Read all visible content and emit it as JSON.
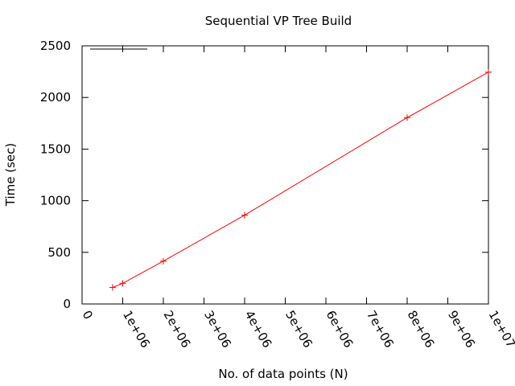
{
  "chart_data": {
    "type": "line",
    "title": "Sequential VP Tree Build",
    "xlabel": "No. of data points (N)",
    "ylabel": "Time (sec)",
    "xlim": [
      0,
      10000000
    ],
    "ylim": [
      0,
      2500
    ],
    "xticks": [
      0,
      1000000,
      2000000,
      3000000,
      4000000,
      5000000,
      6000000,
      7000000,
      8000000,
      9000000,
      10000000
    ],
    "xtick_labels": [
      "0",
      "1e+06",
      "2e+06",
      "3e+06",
      "4e+06",
      "5e+06",
      "6e+06",
      "7e+06",
      "8e+06",
      "9e+06",
      "1e+07"
    ],
    "yticks": [
      0,
      500,
      1000,
      1500,
      2000,
      2500
    ],
    "ytick_labels": [
      "0",
      "500",
      "1000",
      "1500",
      "2000",
      "2500"
    ],
    "grid": false,
    "legend": "top-left",
    "series": [
      {
        "name": "",
        "color": "#ff0000",
        "marker": "plus",
        "x": [
          750000,
          1000000,
          2000000,
          4000000,
          8000000,
          10000000
        ],
        "y": [
          160,
          200,
          415,
          860,
          1805,
          2245
        ]
      }
    ]
  }
}
